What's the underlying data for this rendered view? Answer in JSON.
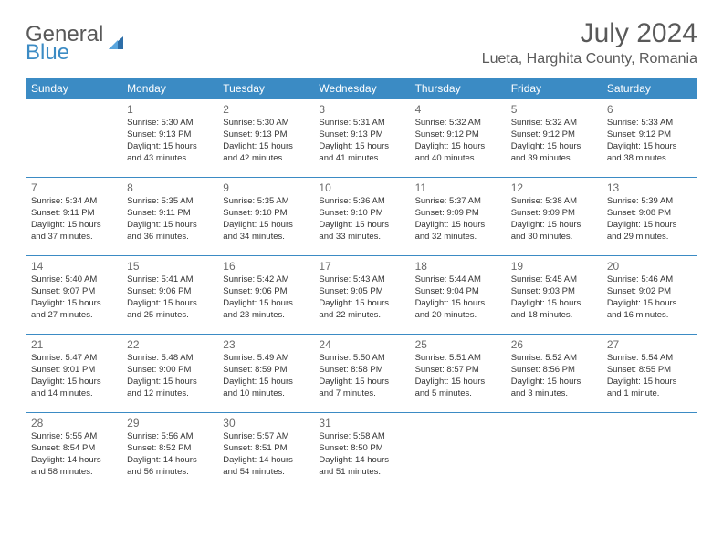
{
  "header": {
    "logo_general": "General",
    "logo_blue": "Blue",
    "month_year": "July 2024",
    "location": "Lueta, Harghita County, Romania"
  },
  "colors": {
    "accent": "#3b8bc4",
    "text": "#333333",
    "muted": "#595959",
    "bg": "#ffffff"
  },
  "day_headers": [
    "Sunday",
    "Monday",
    "Tuesday",
    "Wednesday",
    "Thursday",
    "Friday",
    "Saturday"
  ],
  "weeks": [
    [
      {
        "num": "",
        "sunrise": "",
        "sunset": "",
        "daylight": ""
      },
      {
        "num": "1",
        "sunrise": "Sunrise: 5:30 AM",
        "sunset": "Sunset: 9:13 PM",
        "daylight": "Daylight: 15 hours and 43 minutes."
      },
      {
        "num": "2",
        "sunrise": "Sunrise: 5:30 AM",
        "sunset": "Sunset: 9:13 PM",
        "daylight": "Daylight: 15 hours and 42 minutes."
      },
      {
        "num": "3",
        "sunrise": "Sunrise: 5:31 AM",
        "sunset": "Sunset: 9:13 PM",
        "daylight": "Daylight: 15 hours and 41 minutes."
      },
      {
        "num": "4",
        "sunrise": "Sunrise: 5:32 AM",
        "sunset": "Sunset: 9:12 PM",
        "daylight": "Daylight: 15 hours and 40 minutes."
      },
      {
        "num": "5",
        "sunrise": "Sunrise: 5:32 AM",
        "sunset": "Sunset: 9:12 PM",
        "daylight": "Daylight: 15 hours and 39 minutes."
      },
      {
        "num": "6",
        "sunrise": "Sunrise: 5:33 AM",
        "sunset": "Sunset: 9:12 PM",
        "daylight": "Daylight: 15 hours and 38 minutes."
      }
    ],
    [
      {
        "num": "7",
        "sunrise": "Sunrise: 5:34 AM",
        "sunset": "Sunset: 9:11 PM",
        "daylight": "Daylight: 15 hours and 37 minutes."
      },
      {
        "num": "8",
        "sunrise": "Sunrise: 5:35 AM",
        "sunset": "Sunset: 9:11 PM",
        "daylight": "Daylight: 15 hours and 36 minutes."
      },
      {
        "num": "9",
        "sunrise": "Sunrise: 5:35 AM",
        "sunset": "Sunset: 9:10 PM",
        "daylight": "Daylight: 15 hours and 34 minutes."
      },
      {
        "num": "10",
        "sunrise": "Sunrise: 5:36 AM",
        "sunset": "Sunset: 9:10 PM",
        "daylight": "Daylight: 15 hours and 33 minutes."
      },
      {
        "num": "11",
        "sunrise": "Sunrise: 5:37 AM",
        "sunset": "Sunset: 9:09 PM",
        "daylight": "Daylight: 15 hours and 32 minutes."
      },
      {
        "num": "12",
        "sunrise": "Sunrise: 5:38 AM",
        "sunset": "Sunset: 9:09 PM",
        "daylight": "Daylight: 15 hours and 30 minutes."
      },
      {
        "num": "13",
        "sunrise": "Sunrise: 5:39 AM",
        "sunset": "Sunset: 9:08 PM",
        "daylight": "Daylight: 15 hours and 29 minutes."
      }
    ],
    [
      {
        "num": "14",
        "sunrise": "Sunrise: 5:40 AM",
        "sunset": "Sunset: 9:07 PM",
        "daylight": "Daylight: 15 hours and 27 minutes."
      },
      {
        "num": "15",
        "sunrise": "Sunrise: 5:41 AM",
        "sunset": "Sunset: 9:06 PM",
        "daylight": "Daylight: 15 hours and 25 minutes."
      },
      {
        "num": "16",
        "sunrise": "Sunrise: 5:42 AM",
        "sunset": "Sunset: 9:06 PM",
        "daylight": "Daylight: 15 hours and 23 minutes."
      },
      {
        "num": "17",
        "sunrise": "Sunrise: 5:43 AM",
        "sunset": "Sunset: 9:05 PM",
        "daylight": "Daylight: 15 hours and 22 minutes."
      },
      {
        "num": "18",
        "sunrise": "Sunrise: 5:44 AM",
        "sunset": "Sunset: 9:04 PM",
        "daylight": "Daylight: 15 hours and 20 minutes."
      },
      {
        "num": "19",
        "sunrise": "Sunrise: 5:45 AM",
        "sunset": "Sunset: 9:03 PM",
        "daylight": "Daylight: 15 hours and 18 minutes."
      },
      {
        "num": "20",
        "sunrise": "Sunrise: 5:46 AM",
        "sunset": "Sunset: 9:02 PM",
        "daylight": "Daylight: 15 hours and 16 minutes."
      }
    ],
    [
      {
        "num": "21",
        "sunrise": "Sunrise: 5:47 AM",
        "sunset": "Sunset: 9:01 PM",
        "daylight": "Daylight: 15 hours and 14 minutes."
      },
      {
        "num": "22",
        "sunrise": "Sunrise: 5:48 AM",
        "sunset": "Sunset: 9:00 PM",
        "daylight": "Daylight: 15 hours and 12 minutes."
      },
      {
        "num": "23",
        "sunrise": "Sunrise: 5:49 AM",
        "sunset": "Sunset: 8:59 PM",
        "daylight": "Daylight: 15 hours and 10 minutes."
      },
      {
        "num": "24",
        "sunrise": "Sunrise: 5:50 AM",
        "sunset": "Sunset: 8:58 PM",
        "daylight": "Daylight: 15 hours and 7 minutes."
      },
      {
        "num": "25",
        "sunrise": "Sunrise: 5:51 AM",
        "sunset": "Sunset: 8:57 PM",
        "daylight": "Daylight: 15 hours and 5 minutes."
      },
      {
        "num": "26",
        "sunrise": "Sunrise: 5:52 AM",
        "sunset": "Sunset: 8:56 PM",
        "daylight": "Daylight: 15 hours and 3 minutes."
      },
      {
        "num": "27",
        "sunrise": "Sunrise: 5:54 AM",
        "sunset": "Sunset: 8:55 PM",
        "daylight": "Daylight: 15 hours and 1 minute."
      }
    ],
    [
      {
        "num": "28",
        "sunrise": "Sunrise: 5:55 AM",
        "sunset": "Sunset: 8:54 PM",
        "daylight": "Daylight: 14 hours and 58 minutes."
      },
      {
        "num": "29",
        "sunrise": "Sunrise: 5:56 AM",
        "sunset": "Sunset: 8:52 PM",
        "daylight": "Daylight: 14 hours and 56 minutes."
      },
      {
        "num": "30",
        "sunrise": "Sunrise: 5:57 AM",
        "sunset": "Sunset: 8:51 PM",
        "daylight": "Daylight: 14 hours and 54 minutes."
      },
      {
        "num": "31",
        "sunrise": "Sunrise: 5:58 AM",
        "sunset": "Sunset: 8:50 PM",
        "daylight": "Daylight: 14 hours and 51 minutes."
      },
      {
        "num": "",
        "sunrise": "",
        "sunset": "",
        "daylight": ""
      },
      {
        "num": "",
        "sunrise": "",
        "sunset": "",
        "daylight": ""
      },
      {
        "num": "",
        "sunrise": "",
        "sunset": "",
        "daylight": ""
      }
    ]
  ]
}
